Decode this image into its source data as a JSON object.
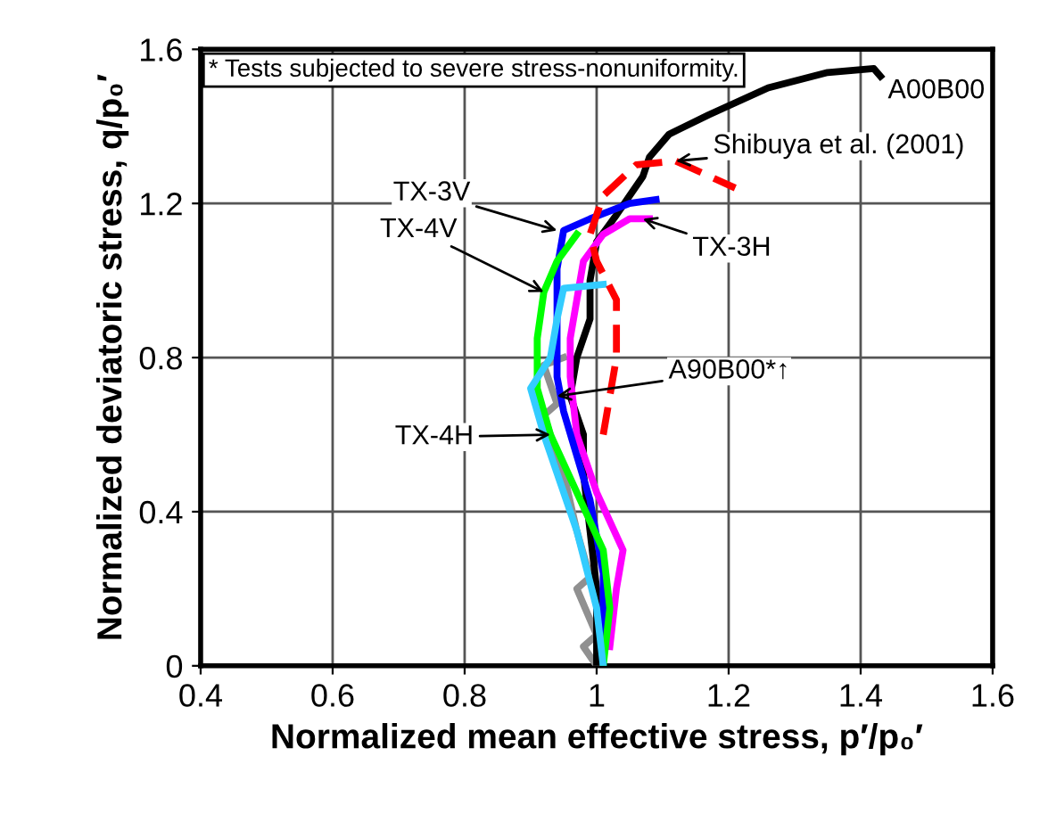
{
  "chart_data": {
    "type": "line",
    "xlabel": "Normalized mean effective stress, p′/p₀′",
    "ylabel": "Normalized deviatoric stress, q/p₀′",
    "xlim": [
      0.4,
      1.6
    ],
    "ylim": [
      0,
      1.6
    ],
    "xticks": [
      0.4,
      0.6,
      0.8,
      1,
      1.2,
      1.4,
      1.6
    ],
    "yticks": [
      0,
      0.4,
      0.8,
      1.2,
      1.6
    ],
    "grid": true,
    "legend": false,
    "annotations": [
      "* Tests subjected to severe stress-nonuniformity.",
      {
        "text": "A00B00",
        "x": 1.43,
        "y": 1.53
      },
      {
        "text": "Shibuya et al. (2001)",
        "x": 1.12,
        "y": 1.31
      },
      {
        "text": "TX-3V",
        "x": 0.94,
        "y": 1.13
      },
      {
        "text": "TX-4V",
        "x": 0.92,
        "y": 0.97
      },
      {
        "text": "TX-3H",
        "x": 1.07,
        "y": 1.16
      },
      {
        "text": "A90B00*↑",
        "x": 0.94,
        "y": 0.7
      },
      {
        "text": "TX-4H",
        "x": 0.93,
        "y": 0.6
      }
    ],
    "series": [
      {
        "color": "#909090",
        "x": [
          1.0,
          0.98,
          1.0,
          0.97,
          0.99,
          0.97,
          0.95,
          0.92,
          0.94,
          0.92,
          0.95
        ],
        "values": [
          0,
          0.05,
          0.08,
          0.2,
          0.23,
          0.35,
          0.5,
          0.65,
          0.68,
          0.78,
          0.8
        ]
      },
      {
        "color": "#000000",
        "x": [
          1.0,
          1.0,
          0.99,
          0.98,
          0.98,
          0.96,
          0.97,
          0.99,
          0.99,
          1.0,
          1.03,
          1.05,
          1.07,
          1.08,
          1.11,
          1.17,
          1.26,
          1.35,
          1.42,
          1.43
        ],
        "values": [
          0,
          0.2,
          0.35,
          0.5,
          0.6,
          0.7,
          0.8,
          0.9,
          1.0,
          1.1,
          1.17,
          1.22,
          1.27,
          1.32,
          1.38,
          1.43,
          1.5,
          1.54,
          1.55,
          1.53
        ]
      },
      {
        "color": "#ff0000",
        "line_style": "dashed",
        "x": [
          1.01,
          1.02,
          1.03,
          1.03,
          1.0,
          0.99,
          1.01,
          1.06,
          1.12,
          1.21
        ],
        "values": [
          0.6,
          0.7,
          0.8,
          0.95,
          1.05,
          1.12,
          1.22,
          1.3,
          1.31,
          1.24
        ]
      },
      {
        "color": "#ff00ff",
        "x": [
          1.02,
          1.03,
          1.04,
          1.0,
          0.97,
          0.96,
          0.96,
          0.97,
          0.98,
          1.01,
          1.05,
          1.08
        ],
        "values": [
          0.05,
          0.2,
          0.3,
          0.45,
          0.6,
          0.75,
          0.85,
          0.95,
          1.05,
          1.12,
          1.16,
          1.16
        ]
      },
      {
        "color": "#0000ff",
        "x": [
          1.01,
          1.01,
          1.01,
          0.99,
          0.95,
          0.94,
          0.94,
          0.94,
          0.95,
          0.99,
          1.05,
          1.09
        ],
        "values": [
          0,
          0.12,
          0.24,
          0.43,
          0.66,
          0.75,
          0.89,
          1.03,
          1.13,
          1.16,
          1.2,
          1.21
        ]
      },
      {
        "color": "#00ff00",
        "x": [
          1.01,
          1.02,
          1.01,
          0.97,
          0.93,
          0.91,
          0.91,
          0.92,
          0.94,
          0.97
        ],
        "values": [
          0,
          0.15,
          0.3,
          0.45,
          0.6,
          0.72,
          0.85,
          0.97,
          1.05,
          1.12
        ]
      },
      {
        "color": "#33ccff",
        "x": [
          1.01,
          1.0,
          0.97,
          0.94,
          0.92,
          0.9,
          0.93,
          0.94,
          0.95,
          1.01
        ],
        "values": [
          0,
          0.15,
          0.35,
          0.5,
          0.6,
          0.72,
          0.8,
          0.9,
          0.98,
          0.99
        ]
      }
    ]
  }
}
